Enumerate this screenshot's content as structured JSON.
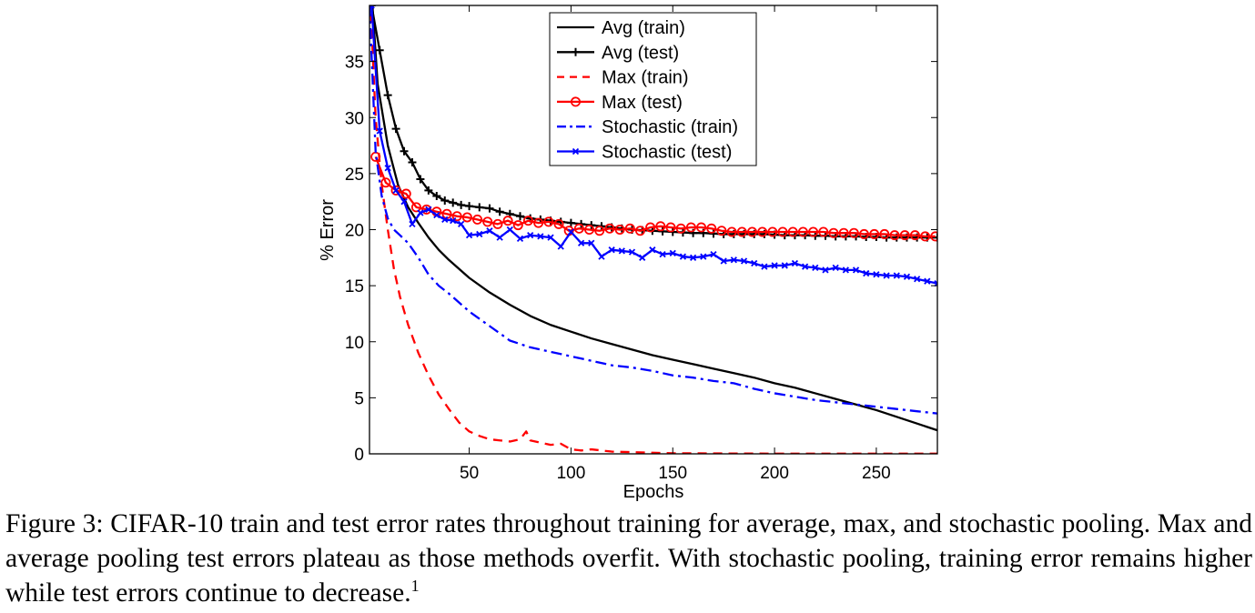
{
  "chart_data": {
    "type": "line",
    "xlabel": "Epochs",
    "ylabel": "% Error",
    "xlim": [
      1,
      280
    ],
    "ylim": [
      0,
      40
    ],
    "xticks": [
      50,
      100,
      150,
      200,
      250
    ],
    "yticks": [
      0,
      5,
      10,
      15,
      20,
      25,
      30,
      35
    ],
    "grid": false,
    "legend_position": "top-center",
    "series": [
      {
        "name": "Avg (train)",
        "color": "#000000",
        "dash": "solid",
        "marker": "none",
        "x": [
          1,
          5,
          10,
          15,
          20,
          25,
          30,
          35,
          40,
          50,
          60,
          70,
          80,
          90,
          100,
          110,
          120,
          130,
          140,
          150,
          160,
          170,
          180,
          190,
          200,
          210,
          220,
          230,
          240,
          250,
          260,
          270,
          280
        ],
        "y": [
          44,
          33,
          27.5,
          24,
          22,
          20.6,
          19.3,
          18.2,
          17.3,
          15.7,
          14.4,
          13.3,
          12.3,
          11.5,
          10.9,
          10.3,
          9.8,
          9.3,
          8.8,
          8.4,
          8.0,
          7.6,
          7.2,
          6.8,
          6.3,
          5.9,
          5.4,
          4.9,
          4.4,
          3.9,
          3.3,
          2.7,
          2.1
        ]
      },
      {
        "name": "Avg (test)",
        "color": "#000000",
        "dash": "solid",
        "marker": "plus",
        "x": [
          2,
          6,
          10,
          14,
          18,
          22,
          26,
          30,
          34,
          38,
          42,
          46,
          50,
          55,
          60,
          65,
          70,
          75,
          80,
          85,
          90,
          95,
          100,
          105,
          110,
          115,
          120,
          125,
          130,
          135,
          140,
          145,
          150,
          155,
          160,
          165,
          170,
          175,
          180,
          185,
          190,
          195,
          200,
          205,
          210,
          215,
          220,
          225,
          230,
          235,
          240,
          245,
          250,
          255,
          260,
          265,
          270,
          275,
          280
        ],
        "y": [
          40,
          36,
          32,
          29,
          27,
          26,
          24.5,
          23.5,
          23,
          22.6,
          22.4,
          22.2,
          22.1,
          22.0,
          21.9,
          21.6,
          21.4,
          21.2,
          21.0,
          20.9,
          20.8,
          20.7,
          20.6,
          20.5,
          20.4,
          20.3,
          20.2,
          20.1,
          20.0,
          19.95,
          19.9,
          19.85,
          19.8,
          19.75,
          19.7,
          19.7,
          19.65,
          19.6,
          19.6,
          19.6,
          19.6,
          19.6,
          19.55,
          19.5,
          19.5,
          19.5,
          19.45,
          19.45,
          19.4,
          19.4,
          19.4,
          19.35,
          19.35,
          19.3,
          19.3,
          19.3,
          19.3,
          19.3,
          19.3
        ]
      },
      {
        "name": "Max (train)",
        "color": "#ff0000",
        "dash": "dashed",
        "marker": "none",
        "x": [
          1,
          4,
          7,
          10,
          13,
          16,
          20,
          25,
          30,
          35,
          40,
          45,
          50,
          55,
          60,
          65,
          70,
          75,
          78,
          80,
          85,
          90,
          95,
          100,
          105,
          110,
          120,
          130,
          140,
          150,
          160,
          180,
          200,
          220,
          240,
          260,
          280
        ],
        "y": [
          42,
          30,
          24,
          20,
          16.5,
          14,
          11.5,
          9,
          7,
          5.3,
          4,
          2.8,
          2,
          1.6,
          1.3,
          1.2,
          1.1,
          1.3,
          2.0,
          1.2,
          1.0,
          0.8,
          0.9,
          0.4,
          0.3,
          0.4,
          0.2,
          0.15,
          0.1,
          0.05,
          0.05,
          0.03,
          0.02,
          0.02,
          0.02,
          0.02,
          0.02
        ]
      },
      {
        "name": "Max (test)",
        "color": "#ff0000",
        "dash": "solid",
        "marker": "circle",
        "x": [
          4,
          9,
          14,
          19,
          24,
          29,
          34,
          39,
          44,
          49,
          54,
          59,
          64,
          69,
          74,
          79,
          84,
          89,
          94,
          99,
          104,
          109,
          114,
          119,
          124,
          129,
          134,
          139,
          144,
          149,
          154,
          159,
          164,
          169,
          174,
          179,
          184,
          189,
          194,
          199,
          204,
          209,
          214,
          219,
          224,
          229,
          234,
          239,
          244,
          249,
          254,
          259,
          264,
          269,
          274,
          279
        ],
        "y": [
          26.5,
          24.2,
          23.5,
          23.2,
          22,
          21.8,
          21.6,
          21.4,
          21.2,
          21.1,
          20.9,
          20.7,
          20.5,
          20.8,
          20.4,
          20.8,
          20.6,
          20.7,
          20.5,
          19.9,
          20.1,
          20.0,
          19.9,
          20.1,
          20.0,
          20.1,
          19.9,
          20.2,
          20.3,
          20.2,
          20.1,
          20.2,
          20.2,
          20.1,
          19.9,
          19.8,
          19.8,
          19.8,
          19.8,
          19.8,
          19.8,
          19.8,
          19.8,
          19.8,
          19.8,
          19.7,
          19.7,
          19.7,
          19.6,
          19.6,
          19.6,
          19.5,
          19.5,
          19.5,
          19.4,
          19.4
        ]
      },
      {
        "name": "Stochastic (train)",
        "color": "#0000ff",
        "dash": "dashdot",
        "marker": "none",
        "x": [
          1,
          4,
          7,
          10,
          13,
          16,
          20,
          25,
          30,
          35,
          40,
          50,
          60,
          70,
          80,
          90,
          100,
          110,
          120,
          130,
          140,
          150,
          160,
          170,
          180,
          190,
          200,
          210,
          220,
          230,
          240,
          250,
          260,
          270,
          280
        ],
        "y": [
          40,
          27,
          23,
          21,
          20,
          19.5,
          18.8,
          17.5,
          16,
          15,
          14.3,
          12.7,
          11.4,
          10.1,
          9.5,
          9.1,
          8.7,
          8.3,
          7.9,
          7.7,
          7.4,
          7.0,
          6.8,
          6.5,
          6.3,
          5.8,
          5.4,
          5.1,
          4.8,
          4.6,
          4.4,
          4.2,
          4.0,
          3.8,
          3.6
        ]
      },
      {
        "name": "Stochastic (test)",
        "color": "#0000ff",
        "dash": "solid",
        "marker": "x",
        "x": [
          2,
          6,
          10,
          14,
          18,
          22,
          26,
          30,
          34,
          38,
          42,
          46,
          50,
          55,
          60,
          65,
          70,
          75,
          80,
          85,
          90,
          95,
          100,
          105,
          110,
          115,
          120,
          125,
          130,
          135,
          140,
          145,
          150,
          155,
          160,
          165,
          170,
          175,
          180,
          185,
          190,
          195,
          200,
          205,
          210,
          215,
          220,
          225,
          230,
          235,
          240,
          245,
          250,
          255,
          260,
          265,
          270,
          275,
          280
        ],
        "y": [
          40,
          28.8,
          25.5,
          23.5,
          22.5,
          20.5,
          21.5,
          21.8,
          21.3,
          20.9,
          20.8,
          20.5,
          19.5,
          19.6,
          19.9,
          19.3,
          20.0,
          19.2,
          19.5,
          19.4,
          19.3,
          18.5,
          19.8,
          18.8,
          18.8,
          17.6,
          18.2,
          18.1,
          18.0,
          17.5,
          18.2,
          17.8,
          17.9,
          17.6,
          17.5,
          17.6,
          17.8,
          17.2,
          17.3,
          17.2,
          17.0,
          16.7,
          16.8,
          16.8,
          17.0,
          16.7,
          16.6,
          16.4,
          16.6,
          16.4,
          16.4,
          16.1,
          16.0,
          15.9,
          15.9,
          15.8,
          15.6,
          15.4,
          15.2
        ]
      }
    ]
  },
  "caption": {
    "text": "Figure 3: CIFAR-10 train and test error rates throughout training for average, max, and stochastic pooling. Max and average pooling test errors plateau as those methods overfit. With stochastic pooling, training error remains higher while test errors continue to decrease.",
    "footnote_mark": "1"
  }
}
